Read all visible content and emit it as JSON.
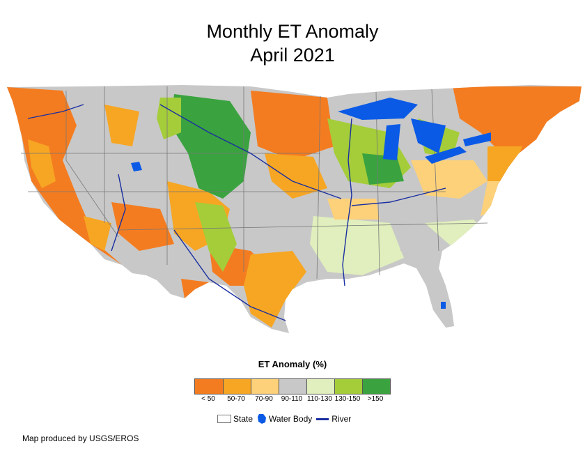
{
  "title": {
    "line1": "Monthly ET Anomaly",
    "line2": "April 2021"
  },
  "legend": {
    "title": "ET Anomaly (%)",
    "classes": [
      {
        "label": "< 50",
        "color": "#f47c20"
      },
      {
        "label": "50-70",
        "color": "#f6a623"
      },
      {
        "label": "70-90",
        "color": "#fdd17a"
      },
      {
        "label": "90-110",
        "color": "#c8c8c8"
      },
      {
        "label": "110-130",
        "color": "#e0efbd"
      },
      {
        "label": "130-150",
        "color": "#a4cd39"
      },
      {
        "label": ">150",
        "color": "#3aa33f"
      }
    ],
    "keys": {
      "state": "State",
      "water": "Water Body",
      "river": "River"
    },
    "water_color": "#0a5ae6",
    "river_color": "#1a2fa0"
  },
  "credit": "Map produced by USGS/EROS"
}
